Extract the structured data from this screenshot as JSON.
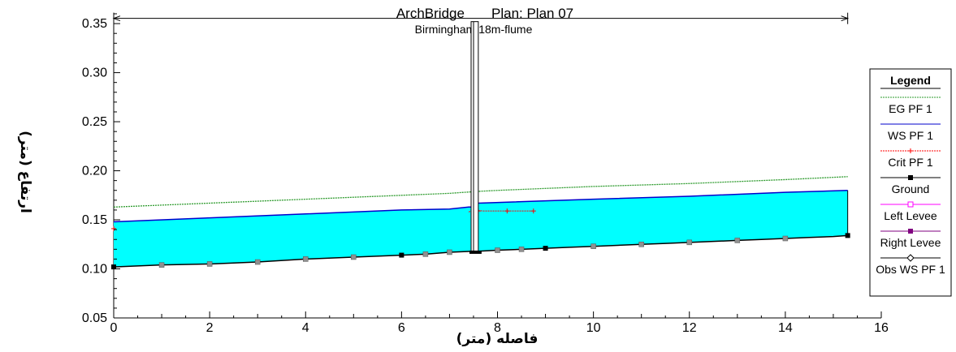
{
  "chart_data": {
    "type": "line",
    "title": "ArchBridge       Plan: Plan 07",
    "subtitle": "Birmingham 18m-flume",
    "xlabel": "فاصله (متر)",
    "ylabel": "ارتفاع (متر)",
    "xlim": [
      0,
      16
    ],
    "ylim": [
      0.05,
      0.36
    ],
    "xticks": [
      "0",
      "2",
      "4",
      "6",
      "8",
      "10",
      "12",
      "14",
      "16"
    ],
    "yticks": [
      "0.05",
      "0.10",
      "0.15",
      "0.20",
      "0.25",
      "0.30",
      "0.35"
    ],
    "grid": false,
    "legend_position": "right",
    "legend_title": "Legend",
    "series": [
      {
        "name": "EG  PF 1",
        "color": "#2e9b2e",
        "style": "dotted-line",
        "x": [
          0,
          2,
          4,
          6,
          7,
          7.6,
          8,
          10,
          12,
          14,
          15.3
        ],
        "y": [
          0.163,
          0.167,
          0.171,
          0.175,
          0.177,
          0.179,
          0.18,
          0.184,
          0.187,
          0.191,
          0.194
        ]
      },
      {
        "name": "WS  PF 1",
        "color": "#0000cc",
        "style": "line",
        "x": [
          0,
          2,
          4,
          6,
          7,
          7.4,
          7.55,
          7.6,
          10,
          12,
          14,
          15.3
        ],
        "y": [
          0.148,
          0.152,
          0.156,
          0.16,
          0.161,
          0.163,
          0.163,
          0.167,
          0.171,
          0.174,
          0.178,
          0.18
        ]
      },
      {
        "name": "Crit  PF 1",
        "color": "#ff0000",
        "style": "dotted-plus",
        "x": [
          0,
          7.4,
          7.5,
          7.7,
          8.2,
          8.75
        ],
        "y": [
          0.141,
          0.158,
          0.16,
          0.159,
          0.159,
          0.159
        ]
      },
      {
        "name": "Ground",
        "color": "#000000",
        "style": "line-square",
        "x": [
          0,
          1,
          2,
          3,
          4,
          5,
          6,
          6.5,
          7,
          7.5,
          7.6,
          8,
          8.5,
          9,
          9.5,
          10,
          10.5,
          11,
          11.5,
          12,
          12.5,
          13,
          13.5,
          14,
          14.5,
          15,
          15.3
        ],
        "y": [
          0.102,
          0.104,
          0.105,
          0.107,
          0.11,
          0.112,
          0.114,
          0.115,
          0.117,
          0.118,
          0.118,
          0.119,
          0.12,
          0.121,
          0.122,
          0.123,
          0.124,
          0.125,
          0.126,
          0.127,
          0.128,
          0.129,
          0.13,
          0.131,
          0.132,
          0.133,
          0.134
        ]
      },
      {
        "name": "Left Levee",
        "color": "#ff00ff",
        "style": "line-open-square",
        "x": [],
        "y": []
      },
      {
        "name": "Right Levee",
        "color": "#800080",
        "style": "line-filled-square",
        "x": [],
        "y": []
      },
      {
        "name": "Obs WS  PF 1",
        "color": "#000000",
        "style": "line-diamond",
        "x": [],
        "y": []
      }
    ],
    "markers": {
      "ground_black_x": [
        0,
        6,
        9,
        15.3
      ],
      "ground_gray_x": [
        1,
        2,
        3,
        4,
        5,
        6.5,
        7,
        8,
        8.5,
        10,
        11,
        12,
        13,
        14
      ],
      "crit_plus_x": [
        7.55,
        7.6,
        8.2,
        8.75
      ],
      "crit_plus_y": [
        0.159,
        0.159,
        0.159,
        0.159
      ],
      "crit_start": [
        0,
        0.141
      ]
    },
    "bridge": {
      "x_left": 7.45,
      "x_right": 7.6,
      "deck_top": 0.352,
      "bottom": 0.117
    },
    "extent_arrow": {
      "x_start": 0,
      "x_end": 15.3,
      "y": 0.352
    },
    "water_fill_color": "#00ffff"
  }
}
